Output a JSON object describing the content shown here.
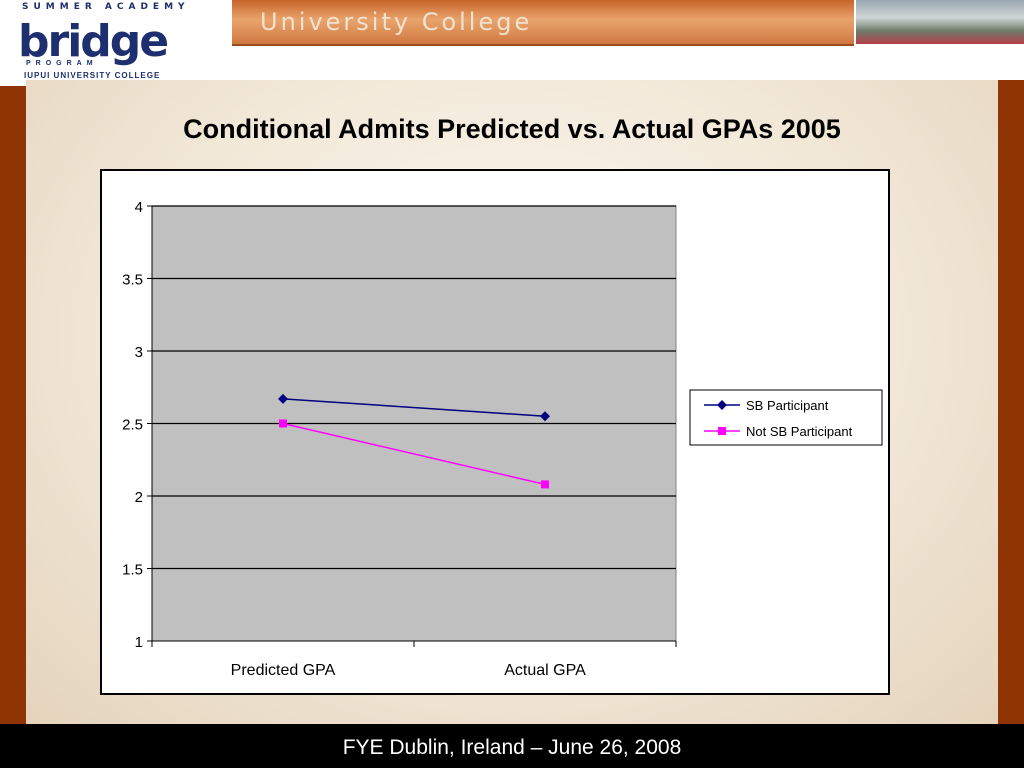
{
  "header": {
    "logo": {
      "arc_text": "SUMMER ACADEMY",
      "word": "bridge",
      "program": "PROGRAM",
      "org": "IUPUI UNIVERSITY COLLEGE"
    },
    "banner_title": "University College"
  },
  "slide": {
    "title": "Conditional Admits Predicted vs. Actual GPAs 2005"
  },
  "footer": {
    "text": "FYE Dublin, Ireland  –  June 26, 2008"
  },
  "colors": {
    "rail": "#8f3403",
    "plot_bg": "#c0c0c0",
    "series_1": "#000080",
    "series_2": "#ff00ff"
  },
  "chart_data": {
    "type": "line",
    "title": "",
    "xlabel": "",
    "ylabel": "",
    "categories": [
      "Predicted GPA",
      "Actual GPA"
    ],
    "ylim": [
      1,
      4
    ],
    "yticks": [
      "1",
      "1.5",
      "2",
      "2.5",
      "3",
      "3.5",
      "4"
    ],
    "grid": true,
    "legend": "right",
    "series": [
      {
        "name": "SB Participant",
        "values": [
          2.67,
          2.55
        ],
        "marker": "diamond",
        "color": "#000080"
      },
      {
        "name": "Not SB Participant",
        "values": [
          2.5,
          2.08
        ],
        "marker": "square",
        "color": "#ff00ff"
      }
    ]
  }
}
